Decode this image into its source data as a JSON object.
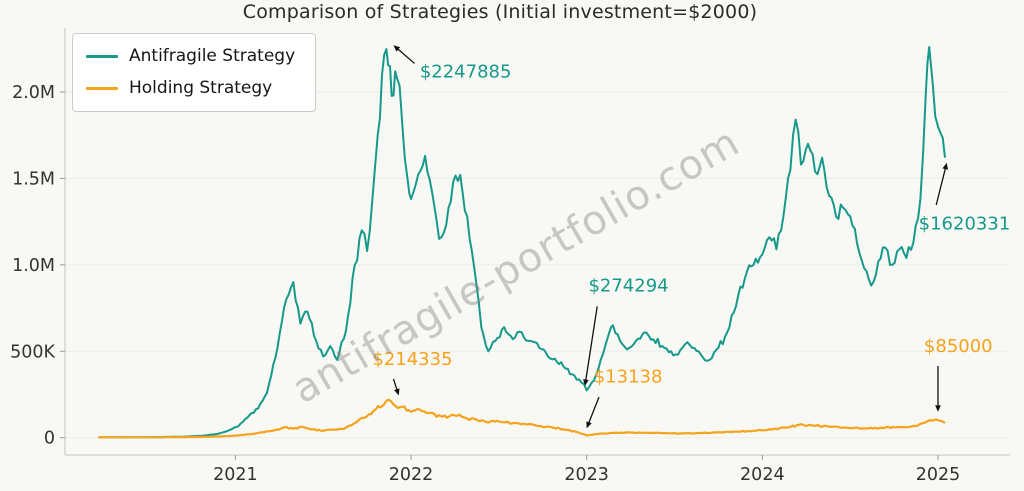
{
  "chart_data": {
    "type": "line",
    "title": "Comparison of Strategies (Initial investment=$2000)",
    "watermark": "antifragile-portfolio.com",
    "xlabel": "",
    "ylabel": "",
    "xlim": [
      2020.03,
      2025.41
    ],
    "ylim": [
      -100000,
      2370000
    ],
    "grid": true,
    "legend_position": "upper left",
    "x_ticks": [
      {
        "v": 2021,
        "label": "2021"
      },
      {
        "v": 2022,
        "label": "2022"
      },
      {
        "v": 2023,
        "label": "2023"
      },
      {
        "v": 2024,
        "label": "2024"
      },
      {
        "v": 2025,
        "label": "2025"
      }
    ],
    "y_ticks": [
      {
        "v": 0,
        "label": "0"
      },
      {
        "v": 500000,
        "label": "500K"
      },
      {
        "v": 1000000,
        "label": "1.0M"
      },
      {
        "v": 1500000,
        "label": "1.5M"
      },
      {
        "v": 2000000,
        "label": "2.0M"
      }
    ],
    "series": [
      {
        "name": "Antifragile Strategy",
        "color": "#16998a",
        "width": 2,
        "noise": 0.045,
        "anchors": [
          [
            2020.22,
            2000
          ],
          [
            2020.4,
            2600
          ],
          [
            2020.55,
            3500
          ],
          [
            2020.7,
            6000
          ],
          [
            2020.82,
            12000
          ],
          [
            2020.9,
            22000
          ],
          [
            2020.97,
            45000
          ],
          [
            2021.02,
            70000
          ],
          [
            2021.08,
            130000
          ],
          [
            2021.13,
            170000
          ],
          [
            2021.18,
            260000
          ],
          [
            2021.24,
            520000
          ],
          [
            2021.29,
            800000
          ],
          [
            2021.33,
            900000
          ],
          [
            2021.37,
            660000
          ],
          [
            2021.41,
            730000
          ],
          [
            2021.46,
            560000
          ],
          [
            2021.5,
            470000
          ],
          [
            2021.54,
            530000
          ],
          [
            2021.58,
            450000
          ],
          [
            2021.63,
            620000
          ],
          [
            2021.68,
            1000000
          ],
          [
            2021.72,
            1200000
          ],
          [
            2021.75,
            1080000
          ],
          [
            2021.78,
            1380000
          ],
          [
            2021.81,
            1750000
          ],
          [
            2021.835,
            2100000
          ],
          [
            2021.86,
            2247885
          ],
          [
            2021.88,
            2150000
          ],
          [
            2021.9,
            1980000
          ],
          [
            2021.92,
            2080000
          ],
          [
            2021.95,
            1820000
          ],
          [
            2021.98,
            1500000
          ],
          [
            2022.0,
            1380000
          ],
          [
            2022.04,
            1520000
          ],
          [
            2022.08,
            1630000
          ],
          [
            2022.12,
            1420000
          ],
          [
            2022.16,
            1150000
          ],
          [
            2022.2,
            1230000
          ],
          [
            2022.24,
            1480000
          ],
          [
            2022.28,
            1520000
          ],
          [
            2022.32,
            1280000
          ],
          [
            2022.36,
            980000
          ],
          [
            2022.4,
            640000
          ],
          [
            2022.44,
            500000
          ],
          [
            2022.48,
            560000
          ],
          [
            2022.53,
            640000
          ],
          [
            2022.58,
            570000
          ],
          [
            2022.63,
            610000
          ],
          [
            2022.68,
            560000
          ],
          [
            2022.73,
            520000
          ],
          [
            2022.78,
            470000
          ],
          [
            2022.83,
            440000
          ],
          [
            2022.88,
            400000
          ],
          [
            2022.93,
            360000
          ],
          [
            2022.97,
            320000
          ],
          [
            2023.0,
            274294
          ],
          [
            2023.04,
            330000
          ],
          [
            2023.08,
            450000
          ],
          [
            2023.12,
            580000
          ],
          [
            2023.15,
            650000
          ],
          [
            2023.19,
            560000
          ],
          [
            2023.23,
            510000
          ],
          [
            2023.28,
            560000
          ],
          [
            2023.33,
            610000
          ],
          [
            2023.38,
            570000
          ],
          [
            2023.43,
            530000
          ],
          [
            2023.48,
            500000
          ],
          [
            2023.52,
            480000
          ],
          [
            2023.56,
            540000
          ],
          [
            2023.6,
            520000
          ],
          [
            2023.65,
            480000
          ],
          [
            2023.7,
            450000
          ],
          [
            2023.75,
            520000
          ],
          [
            2023.8,
            610000
          ],
          [
            2023.85,
            760000
          ],
          [
            2023.9,
            920000
          ],
          [
            2023.95,
            1000000
          ],
          [
            2024.0,
            1060000
          ],
          [
            2024.04,
            1160000
          ],
          [
            2024.08,
            1090000
          ],
          [
            2024.12,
            1280000
          ],
          [
            2024.16,
            1550000
          ],
          [
            2024.19,
            1840000
          ],
          [
            2024.22,
            1580000
          ],
          [
            2024.26,
            1700000
          ],
          [
            2024.3,
            1540000
          ],
          [
            2024.34,
            1620000
          ],
          [
            2024.38,
            1400000
          ],
          [
            2024.42,
            1280000
          ],
          [
            2024.46,
            1330000
          ],
          [
            2024.5,
            1280000
          ],
          [
            2024.54,
            1120000
          ],
          [
            2024.58,
            980000
          ],
          [
            2024.62,
            880000
          ],
          [
            2024.66,
            1020000
          ],
          [
            2024.7,
            1100000
          ],
          [
            2024.74,
            1000000
          ],
          [
            2024.78,
            1090000
          ],
          [
            2024.82,
            1040000
          ],
          [
            2024.86,
            1130000
          ],
          [
            2024.9,
            1380000
          ],
          [
            2024.93,
            1980000
          ],
          [
            2024.95,
            2260000
          ],
          [
            2024.97,
            2050000
          ],
          [
            2025.0,
            1800000
          ],
          [
            2025.04,
            1620331
          ]
        ]
      },
      {
        "name": "Holding Strategy",
        "color": "#f6a21b",
        "width": 2.2,
        "noise": 0.09,
        "anchors": [
          [
            2020.22,
            2000
          ],
          [
            2020.5,
            2400
          ],
          [
            2020.7,
            3500
          ],
          [
            2020.85,
            5500
          ],
          [
            2020.95,
            9000
          ],
          [
            2021.0,
            12000
          ],
          [
            2021.1,
            22000
          ],
          [
            2021.2,
            38000
          ],
          [
            2021.28,
            60000
          ],
          [
            2021.33,
            52000
          ],
          [
            2021.38,
            63000
          ],
          [
            2021.44,
            48000
          ],
          [
            2021.5,
            40000
          ],
          [
            2021.56,
            46000
          ],
          [
            2021.62,
            52000
          ],
          [
            2021.67,
            78000
          ],
          [
            2021.72,
            115000
          ],
          [
            2021.76,
            135000
          ],
          [
            2021.8,
            165000
          ],
          [
            2021.86,
            214335
          ],
          [
            2021.9,
            192000
          ],
          [
            2021.95,
            178000
          ],
          [
            2022.0,
            150000
          ],
          [
            2022.05,
            162000
          ],
          [
            2022.1,
            142000
          ],
          [
            2022.18,
            122000
          ],
          [
            2022.24,
            132000
          ],
          [
            2022.3,
            118000
          ],
          [
            2022.38,
            100000
          ],
          [
            2022.44,
            88000
          ],
          [
            2022.5,
            95000
          ],
          [
            2022.6,
            84000
          ],
          [
            2022.7,
            74000
          ],
          [
            2022.8,
            60000
          ],
          [
            2022.88,
            46000
          ],
          [
            2022.95,
            32000
          ],
          [
            2023.0,
            13138
          ],
          [
            2023.08,
            24000
          ],
          [
            2023.16,
            28000
          ],
          [
            2023.25,
            30000
          ],
          [
            2023.35,
            28000
          ],
          [
            2023.45,
            26000
          ],
          [
            2023.55,
            25000
          ],
          [
            2023.65,
            27000
          ],
          [
            2023.75,
            31000
          ],
          [
            2023.85,
            35000
          ],
          [
            2023.95,
            40000
          ],
          [
            2024.05,
            48000
          ],
          [
            2024.15,
            60000
          ],
          [
            2024.22,
            78000
          ],
          [
            2024.28,
            72000
          ],
          [
            2024.38,
            64000
          ],
          [
            2024.48,
            58000
          ],
          [
            2024.58,
            54000
          ],
          [
            2024.68,
            57000
          ],
          [
            2024.78,
            62000
          ],
          [
            2024.88,
            68000
          ],
          [
            2024.94,
            95000
          ],
          [
            2024.99,
            105000
          ],
          [
            2025.04,
            85000
          ]
        ]
      }
    ],
    "annotations": [
      {
        "text": "$2247885",
        "color": "#16998a",
        "tx": 2022.05,
        "ty": 2085000,
        "sx": 2022.02,
        "sy": 2165000,
        "ex": 2021.9,
        "ey": 2270000
      },
      {
        "text": "$1620331",
        "color": "#16998a",
        "tx": 2024.89,
        "ty": 1205000,
        "sx": 2024.99,
        "sy": 1346000,
        "ex": 2025.05,
        "ey": 1590000
      },
      {
        "text": "$274294",
        "color": "#16998a",
        "tx": 2023.01,
        "ty": 845000,
        "sx": 2023.06,
        "sy": 760000,
        "ex": 2022.99,
        "ey": 300000
      },
      {
        "text": "$214335",
        "color": "#f6a21b",
        "tx": 2021.78,
        "ty": 420000,
        "sx": 2021.9,
        "sy": 340000,
        "ex": 2021.93,
        "ey": 245000
      },
      {
        "text": "$13138",
        "color": "#f6a21b",
        "tx": 2023.04,
        "ty": 320000,
        "sx": 2023.07,
        "sy": 235000,
        "ex": 2023.0,
        "ey": 55000
      },
      {
        "text": "$85000",
        "color": "#f6a21b",
        "tx": 2024.92,
        "ty": 495000,
        "sx": 2025.0,
        "sy": 415000,
        "ex": 2025.0,
        "ey": 150000
      }
    ]
  }
}
